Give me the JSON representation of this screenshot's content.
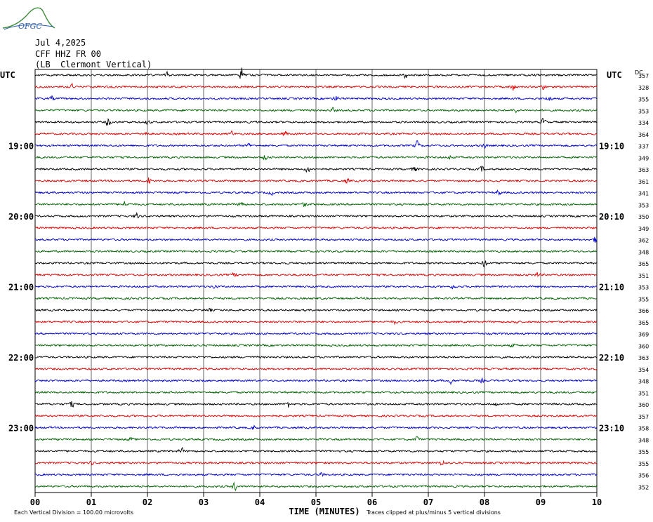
{
  "logo": {
    "text": "OFGC"
  },
  "header": {
    "date": "Jul 4,2025",
    "station": "CFF HHZ FR 00",
    "location": "(LB  Clermont Vertical)"
  },
  "chart_data": {
    "type": "line",
    "left_axis_label": "UTC",
    "right_axis_label": "UTC",
    "dc_label": "DC",
    "x_ticks": [
      "00",
      "01",
      "02",
      "03",
      "04",
      "05",
      "06",
      "07",
      "08",
      "09",
      "10"
    ],
    "xlabel": "TIME (MINUTES)",
    "xlim": [
      0,
      10
    ],
    "left_hour_labels": [
      {
        "row": 6,
        "label": "19:00"
      },
      {
        "row": 12,
        "label": "20:00"
      },
      {
        "row": 18,
        "label": "21:00"
      },
      {
        "row": 24,
        "label": "22:00"
      },
      {
        "row": 30,
        "label": "23:00"
      }
    ],
    "right_time_labels": [
      {
        "row": 6,
        "label": "19:10"
      },
      {
        "row": 12,
        "label": "20:10"
      },
      {
        "row": 18,
        "label": "21:10"
      },
      {
        "row": 24,
        "label": "22:10"
      },
      {
        "row": 30,
        "label": "23:10"
      }
    ],
    "trace_colors": [
      "#000000",
      "#e00000",
      "#0000d0",
      "#006400"
    ],
    "dc_offsets": [
      357,
      328,
      355,
      353,
      334,
      364,
      337,
      349,
      363,
      361,
      341,
      353,
      350,
      349,
      362,
      348,
      365,
      351,
      353,
      355,
      366,
      365,
      369,
      360,
      363,
      354,
      348,
      351,
      360,
      357,
      358,
      348,
      355,
      355,
      356,
      352
    ],
    "bursts": [
      {
        "row": 0,
        "t": 3.68,
        "amp": 1.4
      },
      {
        "row": 0,
        "t": 2.35,
        "amp": 0.5
      },
      {
        "row": 0,
        "t": 6.6,
        "amp": 0.6
      },
      {
        "row": 1,
        "t": 8.5,
        "amp": 0.8
      },
      {
        "row": 1,
        "t": 0.65,
        "amp": 0.5
      },
      {
        "row": 1,
        "t": 9.05,
        "amp": 0.5
      },
      {
        "row": 2,
        "t": 9.15,
        "amp": 0.7
      },
      {
        "row": 2,
        "t": 5.35,
        "amp": 0.5
      },
      {
        "row": 2,
        "t": 0.3,
        "amp": 0.4
      },
      {
        "row": 3,
        "t": 5.3,
        "amp": 0.4
      },
      {
        "row": 3,
        "t": 8.55,
        "amp": 0.4
      },
      {
        "row": 4,
        "t": 1.3,
        "amp": 0.8
      },
      {
        "row": 4,
        "t": 9.05,
        "amp": 0.7
      },
      {
        "row": 4,
        "t": 2.0,
        "amp": 0.4
      },
      {
        "row": 5,
        "t": 1.95,
        "amp": 0.6
      },
      {
        "row": 5,
        "t": 4.45,
        "amp": 0.5
      },
      {
        "row": 5,
        "t": 3.5,
        "amp": 0.4
      },
      {
        "row": 6,
        "t": 6.8,
        "amp": 0.7
      },
      {
        "row": 6,
        "t": 3.8,
        "amp": 0.4
      },
      {
        "row": 6,
        "t": 8.0,
        "amp": 0.4
      },
      {
        "row": 7,
        "t": 4.1,
        "amp": 0.5
      },
      {
        "row": 7,
        "t": 7.4,
        "amp": 0.4
      },
      {
        "row": 8,
        "t": 4.85,
        "amp": 0.6
      },
      {
        "row": 8,
        "t": 6.75,
        "amp": 0.5
      },
      {
        "row": 8,
        "t": 7.95,
        "amp": 0.5
      },
      {
        "row": 9,
        "t": 2.02,
        "amp": 0.7
      },
      {
        "row": 9,
        "t": 5.55,
        "amp": 0.4
      },
      {
        "row": 10,
        "t": 8.25,
        "amp": 0.5
      },
      {
        "row": 10,
        "t": 4.2,
        "amp": 0.4
      },
      {
        "row": 11,
        "t": 1.6,
        "amp": 0.6
      },
      {
        "row": 11,
        "t": 3.67,
        "amp": 0.7
      },
      {
        "row": 11,
        "t": 4.8,
        "amp": 0.5
      },
      {
        "row": 12,
        "t": 1.8,
        "amp": 0.6
      },
      {
        "row": 14,
        "t": 9.98,
        "amp": 0.7
      },
      {
        "row": 16,
        "t": 8.0,
        "amp": 0.8
      },
      {
        "row": 17,
        "t": 3.55,
        "amp": 0.4
      },
      {
        "row": 17,
        "t": 8.95,
        "amp": 0.5
      },
      {
        "row": 18,
        "t": 3.2,
        "amp": 0.4
      },
      {
        "row": 18,
        "t": 7.45,
        "amp": 0.4
      },
      {
        "row": 20,
        "t": 3.1,
        "amp": 0.3
      },
      {
        "row": 21,
        "t": 6.4,
        "amp": 0.3
      },
      {
        "row": 21,
        "t": 8.55,
        "amp": 0.3
      },
      {
        "row": 23,
        "t": 8.5,
        "amp": 0.3
      },
      {
        "row": 26,
        "t": 7.4,
        "amp": 0.5
      },
      {
        "row": 26,
        "t": 7.95,
        "amp": 0.3
      },
      {
        "row": 28,
        "t": 0.65,
        "amp": 0.6
      },
      {
        "row": 28,
        "t": 4.5,
        "amp": 0.7
      },
      {
        "row": 28,
        "t": 8.2,
        "amp": 0.3
      },
      {
        "row": 30,
        "t": 3.9,
        "amp": 0.4
      },
      {
        "row": 31,
        "t": 6.8,
        "amp": 0.6
      },
      {
        "row": 31,
        "t": 1.7,
        "amp": 0.3
      },
      {
        "row": 32,
        "t": 2.6,
        "amp": 0.6
      },
      {
        "row": 33,
        "t": 7.25,
        "amp": 0.7
      },
      {
        "row": 33,
        "t": 1.0,
        "amp": 0.3
      },
      {
        "row": 34,
        "t": 5.1,
        "amp": 0.3
      },
      {
        "row": 35,
        "t": 3.55,
        "amp": 0.8
      }
    ],
    "footer_left": "Each Vertical Division =  100.00 microvolts",
    "footer_right": "Traces clipped at plus/minus 5 vertical divisions"
  }
}
